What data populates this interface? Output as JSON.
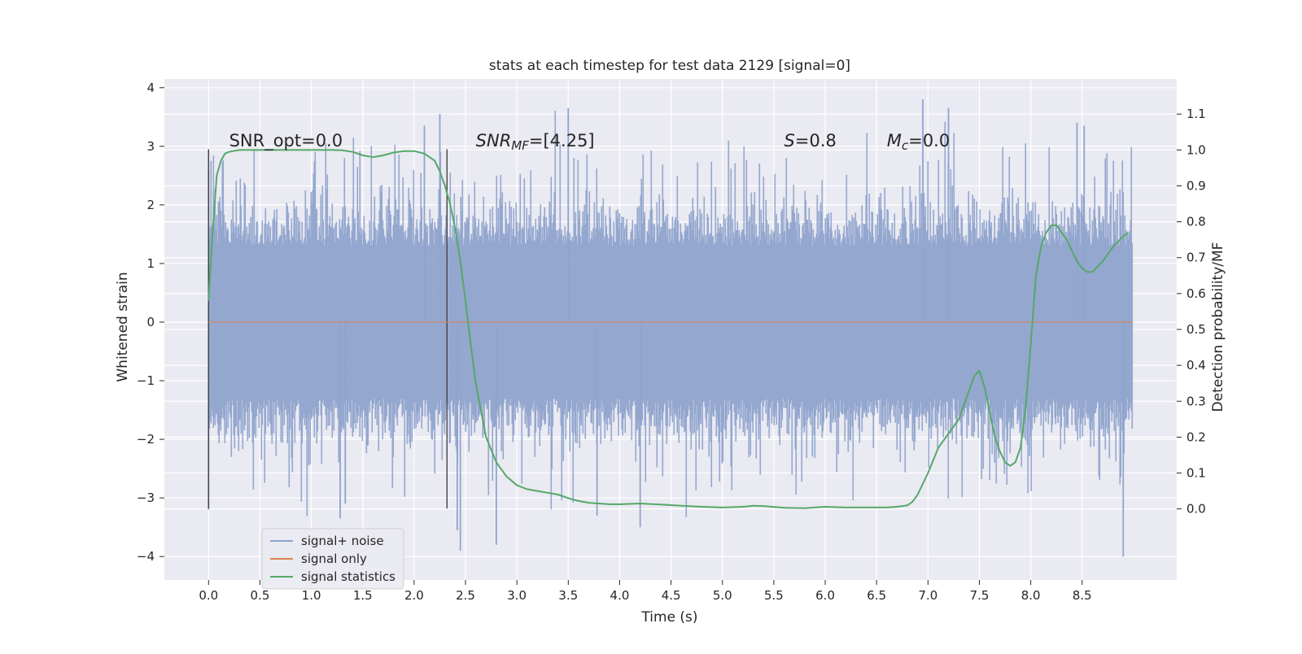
{
  "chart_data": {
    "type": "line",
    "title": "stats at each timestep for test data 2129 [signal=0]",
    "xlabel": "Time (s)",
    "ylabel": "Whitened strain",
    "y2label": "Detection probability/MF",
    "xlim": [
      -0.43,
      9.42
    ],
    "ylim": [
      -4.4,
      4.15
    ],
    "y2lim": [
      -0.198,
      1.198
    ],
    "grid": true,
    "legend_placement": "lower-left",
    "x_ticks": [
      0.0,
      0.5,
      1.0,
      1.5,
      2.0,
      2.5,
      3.0,
      3.5,
      4.0,
      4.5,
      5.0,
      5.5,
      6.0,
      6.5,
      7.0,
      7.5,
      8.0,
      8.5
    ],
    "x_tick_labels": [
      "0.0",
      "0.5",
      "1.0",
      "1.5",
      "2.0",
      "2.5",
      "3.0",
      "3.5",
      "4.0",
      "4.5",
      "5.0",
      "5.5",
      "6.0",
      "6.5",
      "7.0",
      "7.5",
      "8.0",
      "8.5"
    ],
    "y_ticks": [
      -4,
      -3,
      -2,
      -1,
      0,
      1,
      2,
      3,
      4
    ],
    "y_tick_labels": [
      "−4",
      "−3",
      "−2",
      "−1",
      "0",
      "1",
      "2",
      "3",
      "4"
    ],
    "y2_ticks": [
      0.0,
      0.1,
      0.2,
      0.3,
      0.4,
      0.5,
      0.6,
      0.7,
      0.8,
      0.9,
      1.0,
      1.1
    ],
    "y2_tick_labels": [
      "0.0",
      "0.1",
      "0.2",
      "0.3",
      "0.4",
      "0.5",
      "0.6",
      "0.7",
      "0.8",
      "0.9",
      "1.0",
      "1.1"
    ],
    "colors": {
      "background": "#eaeaf2",
      "grid": "#ffffff",
      "noise": "#8fa3cc",
      "signal": "#dd8452",
      "statistics": "#55a868",
      "vline": "#444444"
    },
    "annotations": [
      {
        "id": "snr-opt",
        "text": "SNR_opt=0.0",
        "x": 0.2,
        "y": 3.0
      },
      {
        "id": "snr-mf",
        "text": "SNR_MF=[4.25]",
        "x": 2.6,
        "y": 3.0
      },
      {
        "id": "s",
        "text": "S=0.8",
        "x": 5.6,
        "y": 3.0
      },
      {
        "id": "mc",
        "text": "M_c=0.0",
        "x": 6.6,
        "y": 3.0
      }
    ],
    "vlines": [
      {
        "x": 0.0,
        "ymin": -3.18,
        "ymax": 2.95
      },
      {
        "x": 2.32,
        "ymin": -3.18,
        "ymax": 2.95
      }
    ],
    "series": [
      {
        "name": "signal+ noise",
        "kind": "noise",
        "x_range": [
          0.0,
          8.99
        ],
        "typical_amplitude": 1.3,
        "peak_high": 3.8,
        "peak_low": -4.0,
        "spikes": [
          [
            0.0,
            2.6
          ],
          [
            0.0,
            -3.2
          ],
          [
            1.28,
            -3.35
          ],
          [
            1.33,
            -3.1
          ],
          [
            2.1,
            3.35
          ],
          [
            2.25,
            3.55
          ],
          [
            2.42,
            -3.55
          ],
          [
            2.45,
            -3.9
          ],
          [
            2.8,
            -3.8
          ],
          [
            3.5,
            3.65
          ],
          [
            3.78,
            -3.3
          ],
          [
            4.2,
            -3.5
          ],
          [
            6.95,
            3.8
          ],
          [
            7.2,
            3.65
          ],
          [
            8.45,
            3.4
          ],
          [
            8.52,
            3.35
          ],
          [
            8.9,
            -4.0
          ]
        ]
      },
      {
        "name": "signal only",
        "kind": "line",
        "x": [
          0.0,
          8.99
        ],
        "y": [
          0.0,
          0.0
        ]
      },
      {
        "name": "signal statistics",
        "kind": "line",
        "axis": "right",
        "x": [
          0.0,
          0.04,
          0.08,
          0.12,
          0.16,
          0.2,
          0.3,
          0.4,
          0.5,
          0.6,
          0.8,
          1.0,
          1.2,
          1.3,
          1.4,
          1.5,
          1.6,
          1.7,
          1.8,
          1.9,
          2.0,
          2.1,
          2.2,
          2.25,
          2.3,
          2.35,
          2.4,
          2.45,
          2.5,
          2.55,
          2.6,
          2.7,
          2.8,
          2.9,
          3.0,
          3.1,
          3.2,
          3.3,
          3.4,
          3.5,
          3.6,
          3.7,
          3.8,
          3.9,
          4.0,
          4.2,
          4.4,
          4.6,
          4.8,
          5.0,
          5.2,
          5.3,
          5.4,
          5.6,
          5.8,
          6.0,
          6.2,
          6.4,
          6.6,
          6.7,
          6.8,
          6.85,
          6.9,
          7.0,
          7.1,
          7.2,
          7.3,
          7.35,
          7.4,
          7.45,
          7.5,
          7.55,
          7.6,
          7.65,
          7.7,
          7.75,
          7.8,
          7.85,
          7.9,
          7.95,
          8.0,
          8.05,
          8.1,
          8.15,
          8.2,
          8.25,
          8.3,
          8.35,
          8.4,
          8.45,
          8.5,
          8.55,
          8.6,
          8.7,
          8.8,
          8.9,
          8.95
        ],
        "y": [
          0.58,
          0.78,
          0.93,
          0.97,
          0.99,
          0.995,
          1.0,
          1.0,
          1.0,
          1.0,
          1.0,
          1.0,
          1.0,
          0.999,
          0.995,
          0.985,
          0.98,
          0.985,
          0.993,
          0.997,
          0.997,
          0.99,
          0.97,
          0.94,
          0.9,
          0.85,
          0.78,
          0.69,
          0.58,
          0.46,
          0.35,
          0.2,
          0.13,
          0.09,
          0.066,
          0.055,
          0.05,
          0.045,
          0.04,
          0.03,
          0.022,
          0.017,
          0.015,
          0.013,
          0.013,
          0.015,
          0.012,
          0.009,
          0.006,
          0.004,
          0.006,
          0.009,
          0.008,
          0.003,
          0.002,
          0.006,
          0.004,
          0.004,
          0.004,
          0.006,
          0.01,
          0.02,
          0.04,
          0.1,
          0.17,
          0.21,
          0.25,
          0.29,
          0.33,
          0.37,
          0.385,
          0.34,
          0.27,
          0.2,
          0.16,
          0.13,
          0.12,
          0.13,
          0.17,
          0.28,
          0.46,
          0.65,
          0.73,
          0.77,
          0.79,
          0.79,
          0.77,
          0.75,
          0.72,
          0.69,
          0.67,
          0.66,
          0.66,
          0.69,
          0.73,
          0.76,
          0.77
        ]
      }
    ],
    "legend": [
      "signal+ noise",
      "signal only",
      "signal statistics"
    ]
  }
}
